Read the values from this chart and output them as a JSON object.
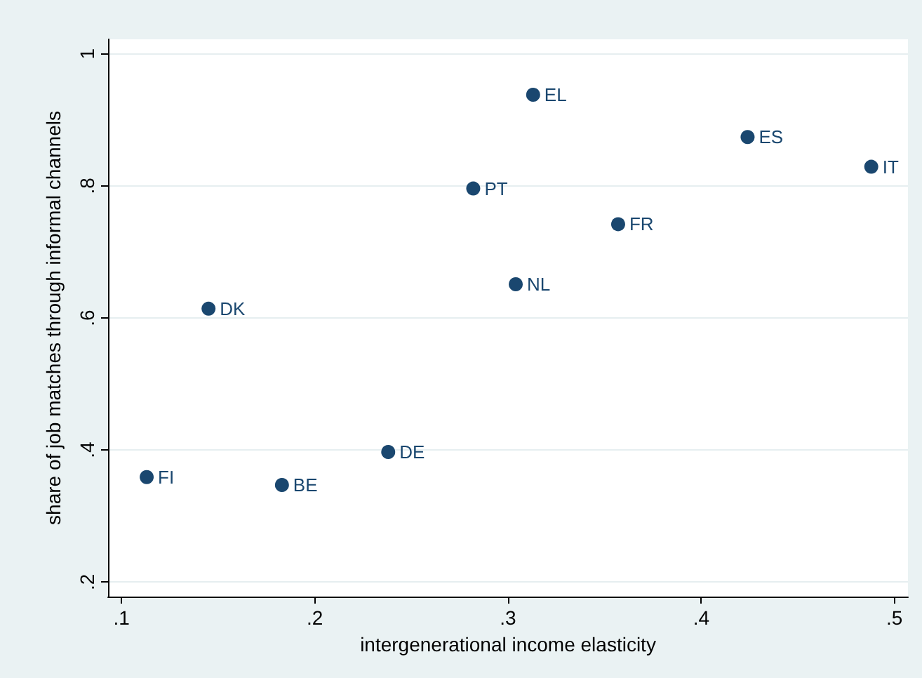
{
  "chart_data": {
    "type": "scatter",
    "xlabel": "intergenerational income elasticity",
    "ylabel": "share of job matches through informal channels",
    "x": [
      0.313,
      0.424,
      0.488,
      0.282,
      0.357,
      0.304,
      0.145,
      0.113,
      0.183,
      0.238
    ],
    "series": [
      {
        "color": "#1a476f",
        "values": [
          0.938,
          0.874,
          0.829,
          0.796,
          0.742,
          0.651,
          0.614,
          0.359,
          0.347,
          0.397
        ],
        "value_labels": [
          "EL",
          "ES",
          "IT",
          "PT",
          "FR",
          "NL",
          "DK",
          "FI",
          "BE",
          "DE"
        ]
      }
    ],
    "xlim": [
      0.093,
      0.507
    ],
    "ylim": [
      0.178,
      1.022
    ],
    "xticks": [
      {
        "value": 0.1,
        "label": ".1"
      },
      {
        "value": 0.2,
        "label": ".2"
      },
      {
        "value": 0.3,
        "label": ".3"
      },
      {
        "value": 0.4,
        "label": ".4"
      },
      {
        "value": 0.5,
        "label": ".5"
      }
    ],
    "yticks": [
      {
        "value": 0.2,
        "label": ".2"
      },
      {
        "value": 0.4,
        "label": ".4"
      },
      {
        "value": 0.6,
        "label": ".6"
      },
      {
        "value": 0.8,
        "label": ".8"
      },
      {
        "value": 1,
        "label": "1"
      }
    ],
    "grid": "y",
    "marker": "circle"
  }
}
